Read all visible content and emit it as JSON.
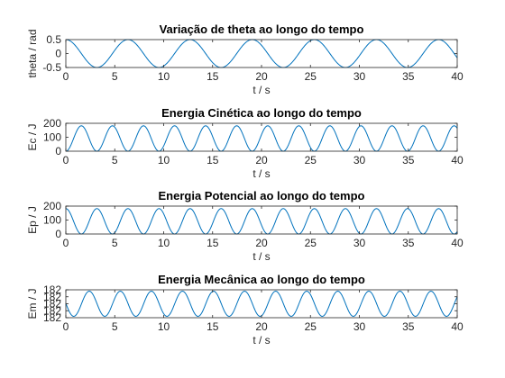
{
  "chart_data": [
    {
      "type": "line",
      "title": "Variação de theta ao longo do tempo",
      "xlabel": "t / s",
      "ylabel": "theta / rad",
      "xlim": [
        0,
        40
      ],
      "ylim": [
        -0.5,
        0.5
      ],
      "xticks": [
        "0",
        "5",
        "10",
        "15",
        "20",
        "25",
        "30",
        "35",
        "40"
      ],
      "yticks": [
        "-0.5",
        "0",
        "0.5"
      ],
      "series": [
        {
          "model": "cosine",
          "amplitude": 0.5,
          "offset": 0,
          "period": 6.35,
          "phase": 0,
          "x_range": [
            0,
            40
          ]
        }
      ],
      "color": "#0072BD",
      "grid": false
    },
    {
      "type": "line",
      "title": "Energia Cinética ao longo do tempo",
      "xlabel": "t / s",
      "ylabel": "Ec / J",
      "xlim": [
        0,
        40
      ],
      "ylim": [
        0,
        200
      ],
      "xticks": [
        "0",
        "5",
        "10",
        "15",
        "20",
        "25",
        "30",
        "35",
        "40"
      ],
      "yticks": [
        "0",
        "100",
        "200"
      ],
      "series": [
        {
          "model": "sine_squared",
          "amplitude": 182,
          "offset": 0,
          "period": 3.175,
          "x_range": [
            0,
            40
          ]
        }
      ],
      "color": "#0072BD",
      "grid": false
    },
    {
      "type": "line",
      "title": "Energia Potencial ao longo do tempo",
      "xlabel": "t / s",
      "ylabel": "Ep / J",
      "xlim": [
        0,
        40
      ],
      "ylim": [
        0,
        200
      ],
      "xticks": [
        "0",
        "5",
        "10",
        "15",
        "20",
        "25",
        "30",
        "35",
        "40"
      ],
      "yticks": [
        "0",
        "100",
        "200"
      ],
      "series": [
        {
          "model": "cosine_squared",
          "amplitude": 182,
          "offset": 0,
          "period": 3.175,
          "x_range": [
            0,
            40
          ]
        }
      ],
      "color": "#0072BD",
      "grid": false
    },
    {
      "type": "line",
      "title": "Energia Mecânica ao longo do tempo",
      "xlabel": "t / s",
      "ylabel": "Em / J",
      "xlim": [
        0,
        40
      ],
      "ylim": [
        182,
        182.00002
      ],
      "xticks": [
        "0",
        "5",
        "10",
        "15",
        "20",
        "25",
        "30",
        "35",
        "40"
      ],
      "yticks": [
        "182",
        "182",
        "182",
        "182",
        "182"
      ],
      "series": [
        {
          "model": "sine_squared",
          "amplitude": 1.8e-05,
          "offset": 182.000001,
          "period": 3.175,
          "phase": -0.8,
          "x_range": [
            0,
            40
          ]
        }
      ],
      "color": "#0072BD",
      "grid": false
    }
  ]
}
